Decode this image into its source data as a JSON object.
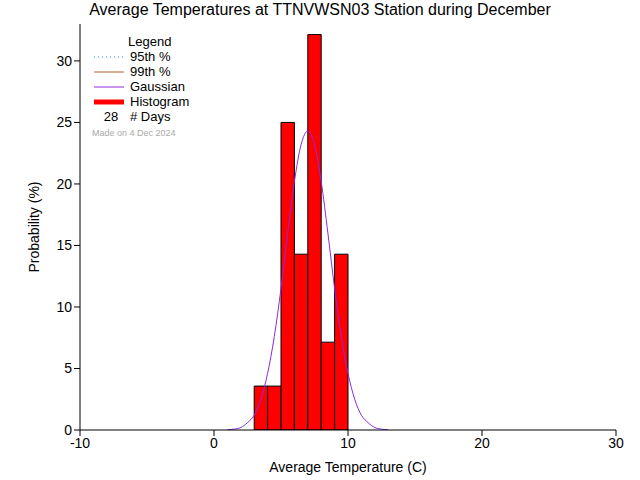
{
  "chart_data": {
    "type": "histogram",
    "title": "Average Temperatures at TTNVWSN03 Station during December",
    "x_label": "Average Temperature (C)",
    "y_label": "Probability (%)",
    "xlim": [
      -10,
      30
    ],
    "xticks": [
      -10,
      0,
      10,
      20,
      30
    ],
    "ylim": [
      0,
      33
    ],
    "yticks": [
      0,
      5,
      10,
      15,
      20,
      25,
      30
    ],
    "grid": false,
    "legend": "upper left",
    "legend_title": "Legend",
    "series": [
      {
        "name": "95th %",
        "type": "line",
        "line_style": "dotted",
        "color": "#1e90ff",
        "values": []
      },
      {
        "name": "99th %",
        "type": "line",
        "line_style": "solid",
        "color": "#b8602a",
        "values": []
      },
      {
        "name": "Gaussian",
        "type": "line",
        "line_style": "solid",
        "color": "#8a2be2",
        "x": [
          1,
          1.5,
          2,
          2.5,
          3,
          3.5,
          4,
          4.5,
          5,
          5.5,
          6,
          6.5,
          7,
          7.5,
          8,
          8.5,
          9,
          9.5,
          10,
          10.5,
          11,
          11.5,
          12,
          12.5,
          13
        ],
        "values": [
          0.02,
          0.07,
          0.2,
          0.6,
          1.2,
          2.5,
          4.6,
          7.6,
          11.5,
          16.0,
          20.2,
          23.2,
          24.3,
          23.2,
          20.2,
          16.0,
          11.5,
          7.6,
          4.6,
          2.5,
          1.2,
          0.6,
          0.2,
          0.07,
          0.02
        ]
      },
      {
        "name": "Histogram",
        "type": "histogram",
        "color": "#ff0000",
        "bins": [
          3,
          4,
          5,
          6,
          7,
          8,
          9,
          10
        ],
        "values": [
          3.57,
          3.57,
          25,
          14.29,
          32.14,
          7.14,
          14.29
        ]
      }
    ],
    "days": {
      "value": 28,
      "label": "# Days"
    },
    "annotation": "Made on 4 Dec 2024"
  }
}
